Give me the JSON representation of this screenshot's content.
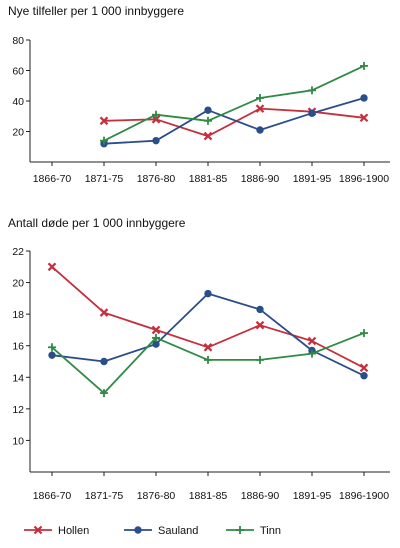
{
  "chart_data": [
    {
      "type": "line",
      "title": "Nye tilfeller per 1 000 innbyggere",
      "categories": [
        "1866-70",
        "1871-75",
        "1876-80",
        "1881-85",
        "1886-90",
        "1891-95",
        "1896-1900"
      ],
      "ylim": [
        0,
        80
      ],
      "yticks": [
        20,
        40,
        60,
        80
      ],
      "grid": false,
      "series": [
        {
          "name": "Hollen",
          "values": [
            null,
            27,
            28,
            17,
            35,
            33,
            29
          ]
        },
        {
          "name": "Sauland",
          "values": [
            null,
            12,
            14,
            34,
            21,
            32,
            42
          ]
        },
        {
          "name": "Tinn",
          "values": [
            null,
            14,
            31,
            27,
            42,
            47,
            63
          ]
        }
      ]
    },
    {
      "type": "line",
      "title": "Antall døde per 1 000 innbyggere",
      "categories": [
        "1866-70",
        "1871-75",
        "1876-80",
        "1881-85",
        "1886-90",
        "1891-95",
        "1896-1900"
      ],
      "ylim": [
        8,
        22
      ],
      "yticks": [
        10,
        12,
        14,
        16,
        18,
        20,
        22
      ],
      "grid": false,
      "series": [
        {
          "name": "Hollen",
          "values": [
            21.0,
            18.1,
            17.0,
            15.9,
            17.3,
            16.3,
            14.6
          ]
        },
        {
          "name": "Sauland",
          "values": [
            15.4,
            15.0,
            16.1,
            19.3,
            18.3,
            15.7,
            14.1
          ]
        },
        {
          "name": "Tinn",
          "values": [
            15.9,
            13.0,
            16.5,
            15.1,
            15.1,
            15.5,
            16.8
          ]
        }
      ]
    }
  ],
  "legend": {
    "placement": "bottom",
    "items": [
      {
        "name": "Hollen",
        "color": "#c62f3d",
        "marker": "x"
      },
      {
        "name": "Sauland",
        "color": "#2a4e8a",
        "marker": "circle"
      },
      {
        "name": "Tinn",
        "color": "#2f8a44",
        "marker": "plus"
      }
    ]
  }
}
